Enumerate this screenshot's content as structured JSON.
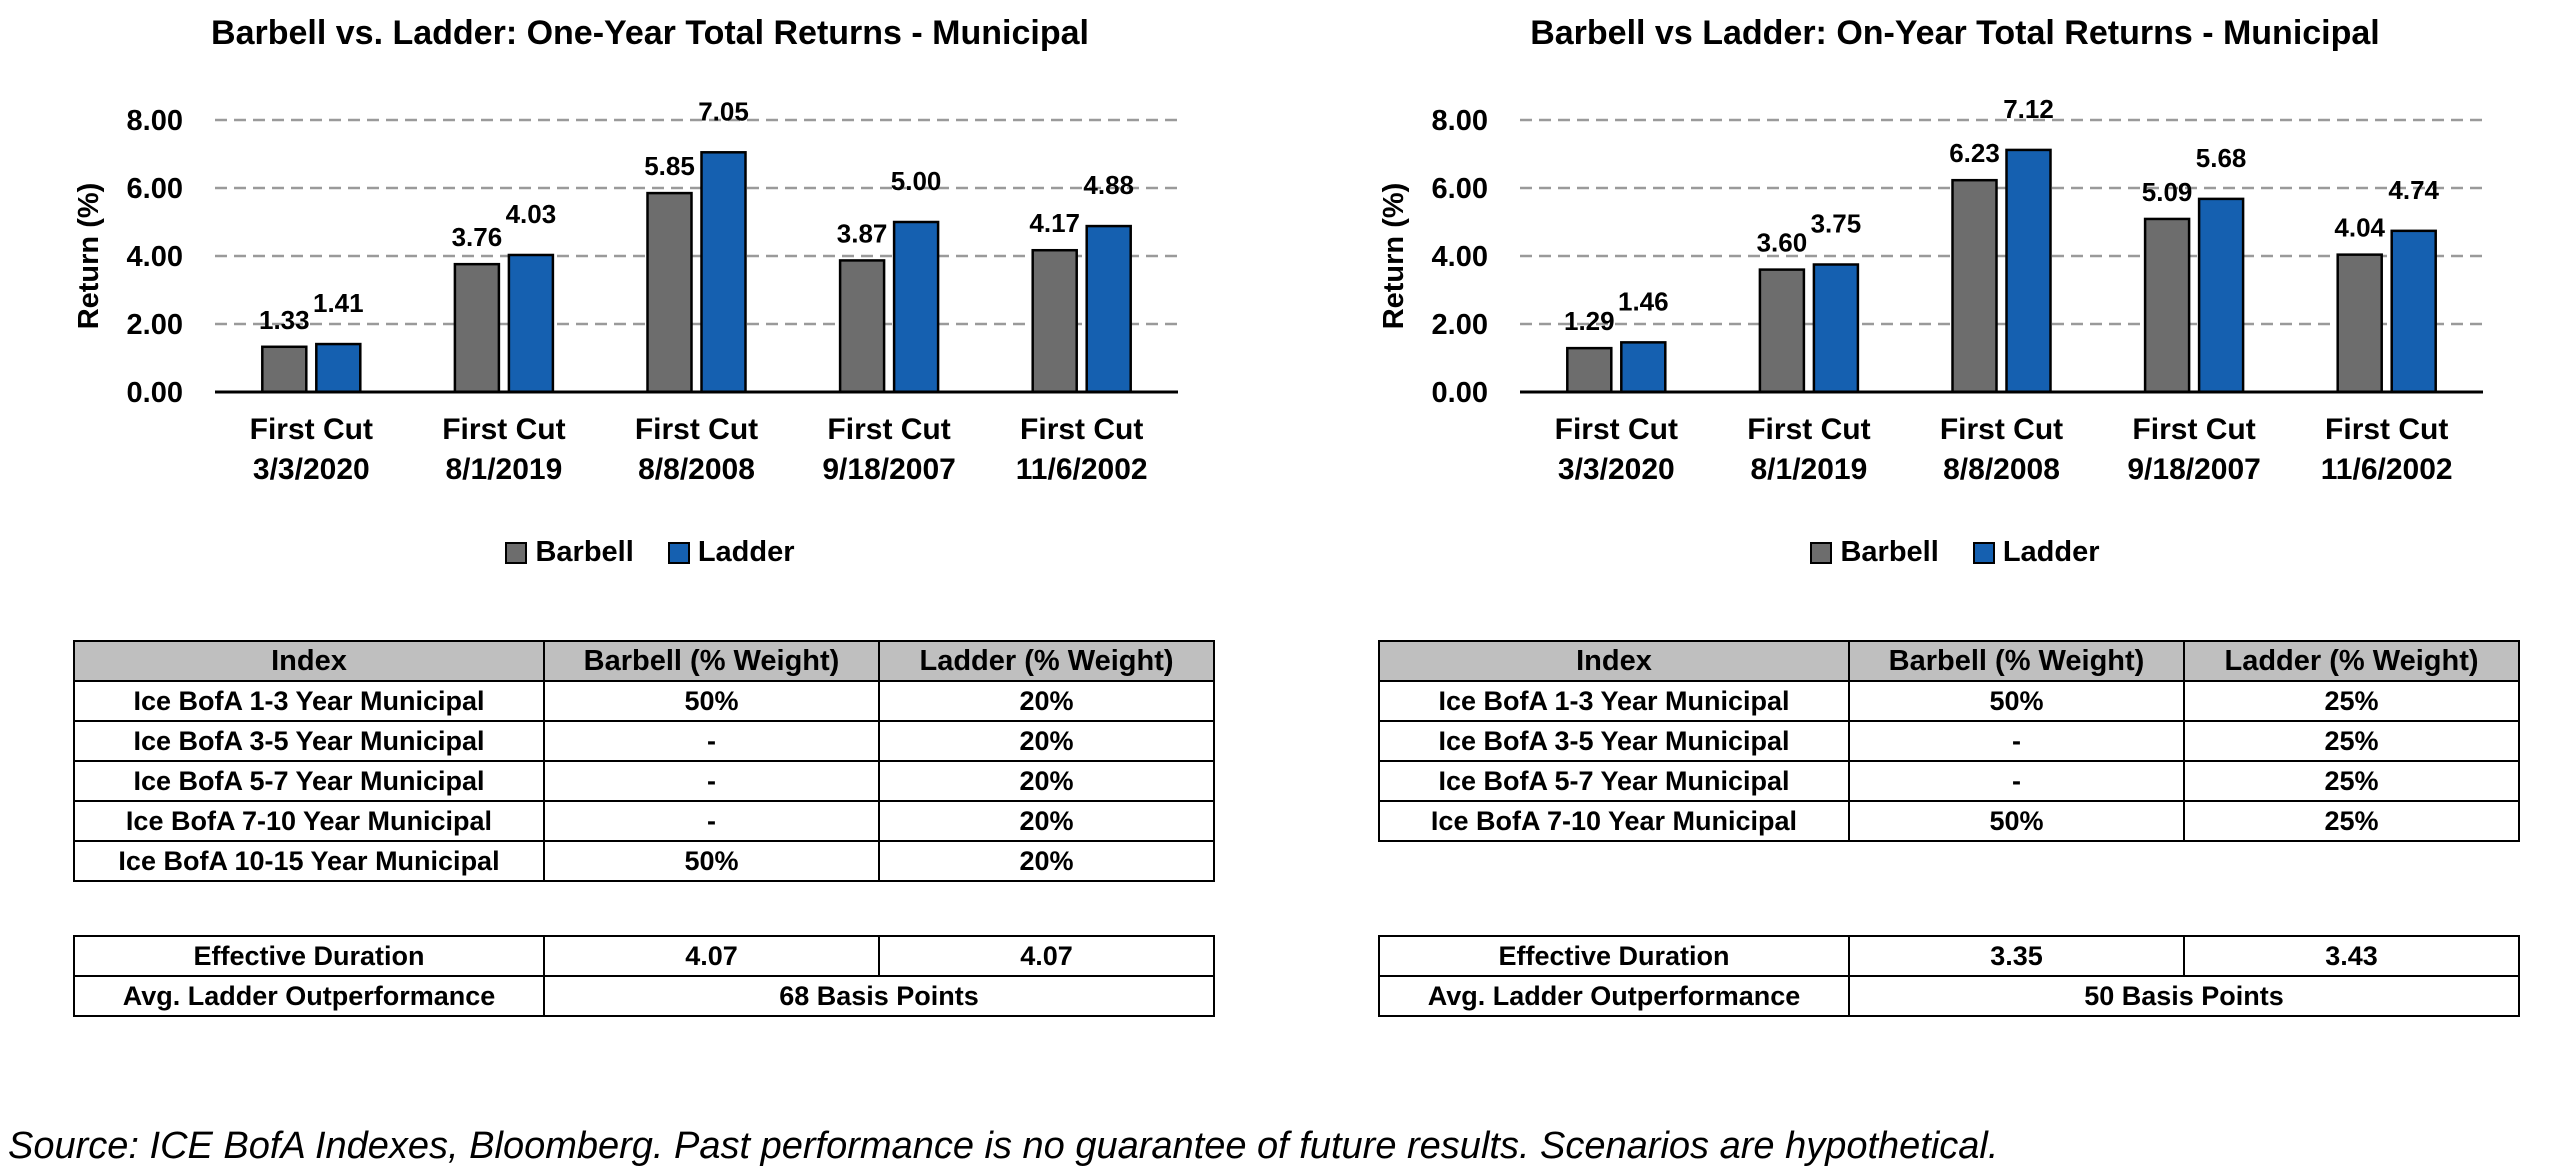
{
  "colors": {
    "barbell": "#6d6d6d",
    "ladder": "#1560b0",
    "grid": "#9a9a9a",
    "table_header": "#bfbfbf"
  },
  "chart_data": [
    {
      "type": "bar",
      "title": "Barbell vs. Ladder: One-Year Total Returns - Municipal",
      "ylabel": "Return (%)",
      "xlabel": "",
      "ylim": [
        0,
        8
      ],
      "yticks": [
        "0.00",
        "2.00",
        "4.00",
        "6.00",
        "8.00"
      ],
      "grid": true,
      "legend_position": "bottom",
      "categories": [
        [
          "First Cut",
          "3/3/2020"
        ],
        [
          "First Cut",
          "8/1/2019"
        ],
        [
          "First Cut",
          "8/8/2008"
        ],
        [
          "First Cut",
          "9/18/2007"
        ],
        [
          "First Cut",
          "11/6/2002"
        ]
      ],
      "series": [
        {
          "name": "Barbell",
          "values": [
            1.33,
            3.76,
            5.85,
            3.87,
            4.17
          ],
          "labels": [
            "1.33",
            "3.76",
            "5.85",
            "3.87",
            "4.17"
          ]
        },
        {
          "name": "Ladder",
          "values": [
            1.41,
            4.03,
            7.05,
            5.0,
            4.88
          ],
          "labels": [
            "1.41",
            "4.03",
            "7.05",
            "5.00",
            "4.88"
          ]
        }
      ]
    },
    {
      "type": "bar",
      "title": "Barbell vs Ladder: On-Year Total Returns - Municipal",
      "ylabel": "Return (%)",
      "xlabel": "",
      "ylim": [
        0,
        8
      ],
      "yticks": [
        "0.00",
        "2.00",
        "4.00",
        "6.00",
        "8.00"
      ],
      "grid": true,
      "legend_position": "bottom",
      "categories": [
        [
          "First Cut",
          "3/3/2020"
        ],
        [
          "First Cut",
          "8/1/2019"
        ],
        [
          "First Cut",
          "8/8/2008"
        ],
        [
          "First Cut",
          "9/18/2007"
        ],
        [
          "First Cut",
          "11/6/2002"
        ]
      ],
      "series": [
        {
          "name": "Barbell",
          "values": [
            1.29,
            3.6,
            6.23,
            5.09,
            4.04
          ],
          "labels": [
            "1.29",
            "3.60",
            "6.23",
            "5.09",
            "4.04"
          ]
        },
        {
          "name": "Ladder",
          "values": [
            1.46,
            3.75,
            7.12,
            5.68,
            4.74
          ],
          "labels": [
            "1.46",
            "3.75",
            "7.12",
            "5.68",
            "4.74"
          ]
        }
      ]
    }
  ],
  "tables": {
    "left": {
      "headers": [
        "Index",
        "Barbell (% Weight)",
        "Ladder (% Weight)"
      ],
      "rows": [
        [
          "Ice BofA 1-3 Year Municipal",
          "50%",
          "20%"
        ],
        [
          "Ice BofA 3-5 Year Municipal",
          "-",
          "20%"
        ],
        [
          "Ice BofA 5-7 Year Municipal",
          "-",
          "20%"
        ],
        [
          "Ice BofA 7-10 Year Municipal",
          "-",
          "20%"
        ],
        [
          "Ice BofA 10-15 Year Municipal",
          "50%",
          "20%"
        ]
      ],
      "effective_duration": {
        "label": "Effective Duration",
        "barbell": "4.07",
        "ladder": "4.07"
      },
      "outperformance": {
        "label": "Avg. Ladder Outperformance",
        "value": "68 Basis Points"
      }
    },
    "right": {
      "headers": [
        "Index",
        "Barbell (% Weight)",
        "Ladder (% Weight)"
      ],
      "rows": [
        [
          "Ice BofA 1-3 Year Municipal",
          "50%",
          "25%"
        ],
        [
          "Ice BofA 3-5 Year Municipal",
          "-",
          "25%"
        ],
        [
          "Ice BofA 5-7 Year Municipal",
          "-",
          "25%"
        ],
        [
          "Ice BofA 7-10 Year Municipal",
          "50%",
          "25%"
        ]
      ],
      "effective_duration": {
        "label": "Effective Duration",
        "barbell": "3.35",
        "ladder": "3.43"
      },
      "outperformance": {
        "label": "Avg. Ladder Outperformance",
        "value": "50 Basis Points"
      }
    }
  },
  "source": "Source: ICE BofA Indexes, Bloomberg. Past performance is no guarantee of future results. Scenarios are hypothetical."
}
